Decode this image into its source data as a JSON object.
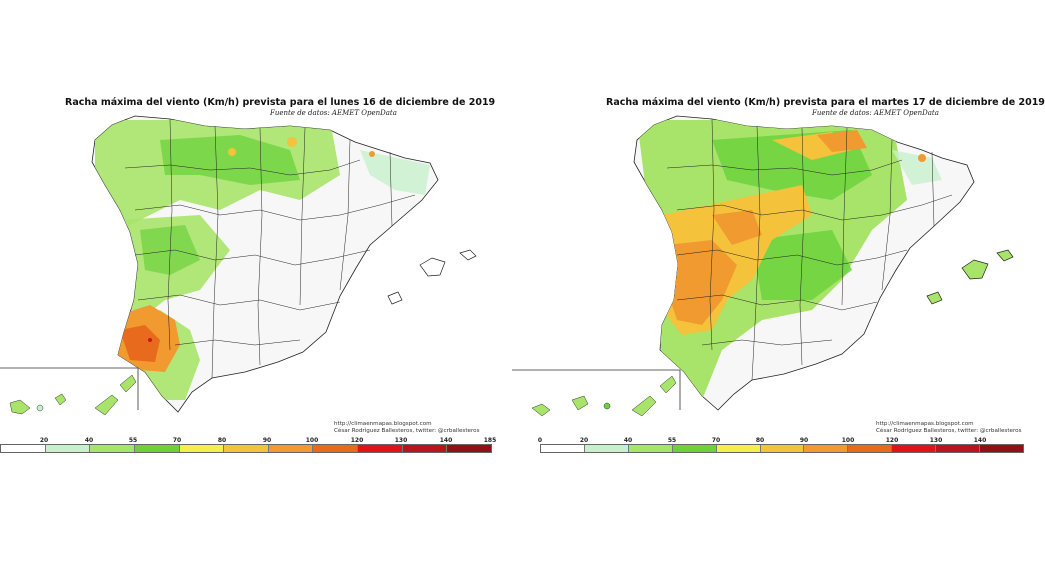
{
  "maps": [
    {
      "title": "Racha máxima del viento (Km/h) prevista para el lunes 16 de diciembre de 2019",
      "source": "Fuente de datos: AEMET OpenData",
      "credit_url": "http://climaenmapas.blogspot.com",
      "credit_author": "César Rodríguez Ballesteros, twitter: @crballesteros",
      "scale_labels": [
        "20",
        "40",
        "55",
        "70",
        "80",
        "90",
        "100",
        "120",
        "130",
        "140",
        "185"
      ]
    },
    {
      "title": "Racha máxima del viento (Km/h) prevista para el martes 17 de diciembre de 2019",
      "source": "Fuente de datos: AEMET OpenData",
      "credit_url": "http://climaenmapas.blogspot.com",
      "credit_author": "César Rodríguez Ballesteros, twitter: @crballesteros",
      "scale_labels": [
        "0",
        "20",
        "40",
        "55",
        "70",
        "80",
        "90",
        "100",
        "120",
        "130",
        "140"
      ]
    }
  ],
  "legend_colors": [
    "#ffffff",
    "#c8f0cc",
    "#a8e36a",
    "#6cd23c",
    "#f4f04a",
    "#f5c23c",
    "#f09a30",
    "#e86a1c",
    "#e01414",
    "#b8141c",
    "#901018"
  ],
  "icons": [
    "spain-map-icon",
    "canary-islands-icon",
    "balearic-islands-icon"
  ]
}
